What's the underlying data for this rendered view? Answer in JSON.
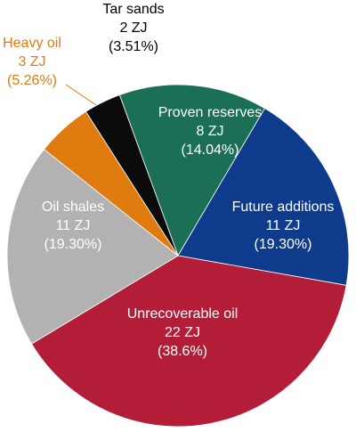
{
  "chart_data": {
    "type": "pie",
    "categories": [
      "Proven reserves",
      "Future additions",
      "Unrecoverable oil",
      "Oil shales",
      "Heavy oil",
      "Tar sands"
    ],
    "values": [
      8,
      11,
      22,
      11,
      3,
      2
    ],
    "value_labels": [
      "8 ZJ",
      "11 ZJ",
      "22 ZJ",
      "11 ZJ",
      "3 ZJ",
      "2 ZJ"
    ],
    "percent_labels": [
      "(14.04%)",
      "(19.30%)",
      "(38.6%)",
      "(19.30%)",
      "(5.26%)",
      "(3.51%)"
    ],
    "colors": [
      "#1b6f56",
      "#0f3b8d",
      "#b41d37",
      "#b2b2b2",
      "#e07b10",
      "#0b0b0b"
    ]
  }
}
